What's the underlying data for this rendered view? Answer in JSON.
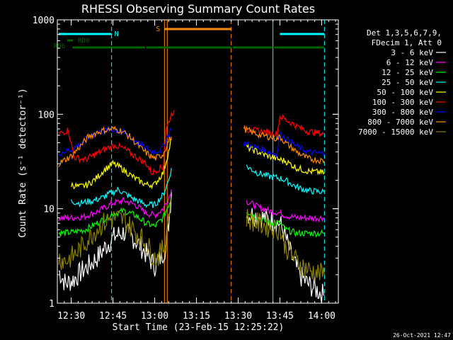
{
  "chart_data": {
    "type": "line",
    "title": "RHESSI Observing Summary Count Rates",
    "xlabel": "Start Time (23-Feb-15 12:25:22)",
    "ylabel": "Count Rate (s⁻¹ detector⁻¹)",
    "footer": "26-Oct-2021 12:47",
    "x_range_minutes_after_1225": [
      0,
      101
    ],
    "y_log": true,
    "ylim": [
      1,
      1000
    ],
    "x_ticks": [
      {
        "label": "12:30",
        "t": 5
      },
      {
        "label": "12:45",
        "t": 20
      },
      {
        "label": "13:00",
        "t": 35
      },
      {
        "label": "13:15",
        "t": 50
      },
      {
        "label": "13:30",
        "t": 65
      },
      {
        "label": "13:45",
        "t": 80
      },
      {
        "label": "14:00",
        "t": 95
      }
    ],
    "y_ticks": [
      {
        "label": "1",
        "v": 1
      },
      {
        "label": "10",
        "v": 10
      },
      {
        "label": "100",
        "v": 100
      },
      {
        "label": "1000",
        "v": 1000
      }
    ],
    "legend": {
      "header": [
        "Det 1,3,5,6,7,9,",
        "FDecim 1, Att 0"
      ],
      "placement": "right"
    },
    "series": [
      {
        "name": "3 - 6 keV",
        "color": "#ffffff",
        "segments": [
          [
            [
              0.5,
              2.2
            ],
            [
              3,
              1.6
            ],
            [
              6,
              1.8
            ],
            [
              9,
              2.2
            ],
            [
              12,
              2.6
            ],
            [
              15,
              3.2
            ],
            [
              18,
              4.2
            ],
            [
              21,
              5.2
            ],
            [
              24,
              5.6
            ],
            [
              27,
              5.0
            ],
            [
              30,
              4.0
            ],
            [
              33,
              3.0
            ],
            [
              35,
              2.5
            ],
            [
              37,
              3.0
            ],
            [
              39,
              4.0
            ],
            [
              40,
              7
            ],
            [
              41,
              15
            ]
          ],
          [
            [
              68,
              9
            ],
            [
              71,
              8.5
            ],
            [
              74,
              8
            ],
            [
              77,
              7.5
            ],
            [
              80,
              7
            ],
            [
              82,
              5
            ],
            [
              84,
              3.2
            ],
            [
              87,
              2.0
            ],
            [
              90,
              1.6
            ],
            [
              93,
              1.4
            ],
            [
              96,
              1.2
            ]
          ]
        ]
      },
      {
        "name": "6 - 12 keV",
        "color": "#ff00ff",
        "segments": [
          [
            [
              0.5,
              8
            ],
            [
              5,
              8
            ],
            [
              10,
              8.3
            ],
            [
              15,
              9.5
            ],
            [
              20,
              11.5
            ],
            [
              24,
              12.2
            ],
            [
              28,
              11
            ],
            [
              32,
              9
            ],
            [
              35,
              8.5
            ],
            [
              38,
              10
            ],
            [
              40,
              13
            ],
            [
              41,
              16
            ]
          ],
          [
            [
              68,
              12
            ],
            [
              72,
              10.5
            ],
            [
              76,
              9.5
            ],
            [
              80,
              9
            ],
            [
              82,
              8.5
            ],
            [
              86,
              8
            ],
            [
              90,
              8
            ],
            [
              96,
              8
            ]
          ]
        ]
      },
      {
        "name": "12 - 25 keV",
        "color": "#00ff00",
        "segments": [
          [
            [
              0.5,
              5.5
            ],
            [
              5,
              5.6
            ],
            [
              10,
              6
            ],
            [
              15,
              7.2
            ],
            [
              20,
              8.8
            ],
            [
              24,
              9.5
            ],
            [
              28,
              8.5
            ],
            [
              32,
              7
            ],
            [
              35,
              6.5
            ],
            [
              38,
              8
            ],
            [
              40,
              11
            ],
            [
              41,
              13
            ]
          ],
          [
            [
              68,
              9.5
            ],
            [
              72,
              8
            ],
            [
              76,
              7.2
            ],
            [
              80,
              7
            ],
            [
              82,
              6
            ],
            [
              86,
              5.5
            ],
            [
              90,
              5.5
            ],
            [
              96,
              5.5
            ]
          ]
        ]
      },
      {
        "name": "25 - 50 keV",
        "color": "#00ffff",
        "segments": [
          [
            [
              5,
              12
            ],
            [
              8,
              11.5
            ],
            [
              12,
              12
            ],
            [
              16,
              13
            ],
            [
              19,
              14.5
            ],
            [
              22,
              16
            ],
            [
              25,
              14
            ],
            [
              28,
              12.5
            ],
            [
              32,
              11
            ],
            [
              35,
              11
            ],
            [
              38,
              14
            ],
            [
              40,
              20
            ],
            [
              41,
              27
            ]
          ],
          [
            [
              68,
              28
            ],
            [
              72,
              24
            ],
            [
              76,
              22
            ],
            [
              80,
              21
            ],
            [
              82,
              20
            ],
            [
              86,
              17
            ],
            [
              90,
              15.5
            ],
            [
              96,
              15
            ]
          ]
        ]
      },
      {
        "name": "50 - 100 keV",
        "color": "#ffff00",
        "segments": [
          [
            [
              5,
              18
            ],
            [
              8,
              17
            ],
            [
              11,
              18
            ],
            [
              14,
              21
            ],
            [
              17,
              26
            ],
            [
              20,
              30
            ],
            [
              23,
              27
            ],
            [
              26,
              23
            ],
            [
              29,
              20
            ],
            [
              32,
              18
            ],
            [
              35,
              18
            ],
            [
              38,
              24
            ],
            [
              40,
              40
            ],
            [
              41,
              55
            ]
          ],
          [
            [
              68,
              45
            ],
            [
              72,
              40
            ],
            [
              76,
              36
            ],
            [
              80,
              33
            ],
            [
              82,
              32
            ],
            [
              86,
              27
            ],
            [
              90,
              25
            ],
            [
              96,
              24
            ]
          ]
        ]
      },
      {
        "name": "100 - 300 keV",
        "color": "#ff0000",
        "segments": [
          [
            [
              0.5,
              62
            ],
            [
              4,
              68
            ],
            [
              6,
              35
            ],
            [
              10,
              33
            ],
            [
              14,
              38
            ],
            [
              18,
              44
            ],
            [
              21,
              47
            ],
            [
              24,
              43
            ],
            [
              28,
              36
            ],
            [
              32,
              30
            ],
            [
              34,
              24
            ],
            [
              35,
              25
            ],
            [
              37,
              27
            ],
            [
              38,
              27
            ],
            [
              39,
              68
            ],
            [
              41,
              100
            ],
            [
              42,
              110
            ]
          ],
          [
            [
              67,
              70
            ],
            [
              70,
              68
            ],
            [
              73,
              66
            ],
            [
              76,
              64
            ],
            [
              79,
              62
            ],
            [
              80,
              95
            ],
            [
              82,
              88
            ],
            [
              86,
              75
            ],
            [
              90,
              66
            ],
            [
              96,
              62
            ]
          ]
        ]
      },
      {
        "name": "300 - 800 keV",
        "color": "#0000ff",
        "segments": [
          [
            [
              0.5,
              38
            ],
            [
              2,
              40
            ],
            [
              5,
              42
            ],
            [
              8,
              48
            ],
            [
              11,
              57
            ],
            [
              14,
              63
            ],
            [
              17,
              67
            ],
            [
              20,
              69
            ],
            [
              23,
              66
            ],
            [
              26,
              58
            ],
            [
              29,
              50
            ],
            [
              31,
              45
            ],
            [
              33,
              42
            ],
            [
              35,
              40
            ],
            [
              37,
              42
            ],
            [
              38,
              45
            ],
            [
              40,
              62
            ],
            [
              41,
              70
            ]
          ],
          [
            [
              67,
              50
            ],
            [
              70,
              46
            ],
            [
              73,
              43
            ],
            [
              76,
              40
            ],
            [
              79,
              38
            ],
            [
              80,
              62
            ],
            [
              82,
              56
            ],
            [
              86,
              46
            ],
            [
              90,
              40
            ],
            [
              96,
              38
            ]
          ]
        ]
      },
      {
        "name": "800 - 7000 keV",
        "color": "#ff8c00",
        "segments": [
          [
            [
              0.5,
              30
            ],
            [
              2,
              32
            ],
            [
              5,
              36
            ],
            [
              8,
              45
            ],
            [
              11,
              57
            ],
            [
              14,
              64
            ],
            [
              17,
              68
            ],
            [
              20,
              70
            ],
            [
              23,
              67
            ],
            [
              26,
              58
            ],
            [
              29,
              47
            ],
            [
              31,
              41
            ],
            [
              33,
              37
            ],
            [
              35,
              34
            ],
            [
              37,
              36
            ],
            [
              38,
              38
            ],
            [
              40,
              52
            ],
            [
              41,
              58
            ]
          ],
          [
            [
              67,
              70
            ],
            [
              70,
              65
            ],
            [
              73,
              60
            ],
            [
              76,
              58
            ],
            [
              79,
              55
            ],
            [
              80,
              58
            ],
            [
              82,
              50
            ],
            [
              86,
              40
            ],
            [
              90,
              34
            ],
            [
              96,
              32
            ]
          ]
        ]
      },
      {
        "name": "7000 - 15000 keV",
        "color": "#8b8000",
        "segments": [
          [
            [
              0.5,
              3
            ],
            [
              3,
              2.8
            ],
            [
              6,
              3.2
            ],
            [
              9,
              4
            ],
            [
              12,
              5.2
            ],
            [
              15,
              6.5
            ],
            [
              18,
              7.5
            ],
            [
              21,
              8
            ],
            [
              24,
              7.5
            ],
            [
              27,
              6.2
            ],
            [
              30,
              5
            ],
            [
              33,
              3.8
            ],
            [
              35,
              3.0
            ],
            [
              37,
              3.3
            ],
            [
              39,
              4.5
            ],
            [
              40,
              9
            ],
            [
              41,
              12
            ]
          ],
          [
            [
              68,
              8
            ],
            [
              72,
              7
            ],
            [
              76,
              6.5
            ],
            [
              80,
              6
            ],
            [
              82,
              4
            ],
            [
              85,
              3
            ],
            [
              88,
              2.5
            ],
            [
              91,
              2.2
            ],
            [
              96,
              2
            ]
          ]
        ]
      }
    ],
    "flags": [
      {
        "label": "N",
        "color": "#00ffff",
        "t0": 0.5,
        "t1": 19.5,
        "ypix": 48
      },
      {
        "label": "S",
        "color": "#ff8c00",
        "t0": 38.5,
        "t1": 62.5,
        "ypix": 41
      },
      {
        "label": "",
        "color": "#00ffff",
        "t0": 80,
        "t1": 96,
        "ypix": 48
      },
      {
        "label": "RD0",
        "color": "#006400",
        "t0": 5.5,
        "t1": 6.2,
        "ypix": 57
      },
      {
        "label": "RD6",
        "color": "#006400",
        "t0": 5.5,
        "t1": 31.5,
        "ypix": 67
      }
    ],
    "rd6_segments": [
      [
        5.5,
        31.5
      ],
      [
        32,
        62.5
      ],
      [
        63,
        77.5
      ],
      [
        78,
        96
      ]
    ],
    "vlines": [
      {
        "t": 0,
        "color": "#00ffff",
        "dash": false
      },
      {
        "t": 19.5,
        "color": "#00ffff",
        "dash": true
      },
      {
        "t": 38.5,
        "color": "#ff8c00",
        "dash": false
      },
      {
        "t": 39.5,
        "color": "#ff8c00",
        "dash": false
      },
      {
        "t": 62.5,
        "color": "#ff8c00",
        "dash": true
      },
      {
        "t": 77.5,
        "color": "#00ffff",
        "dash": false
      },
      {
        "t": 96,
        "color": "#00ffff",
        "dash": true
      }
    ]
  }
}
